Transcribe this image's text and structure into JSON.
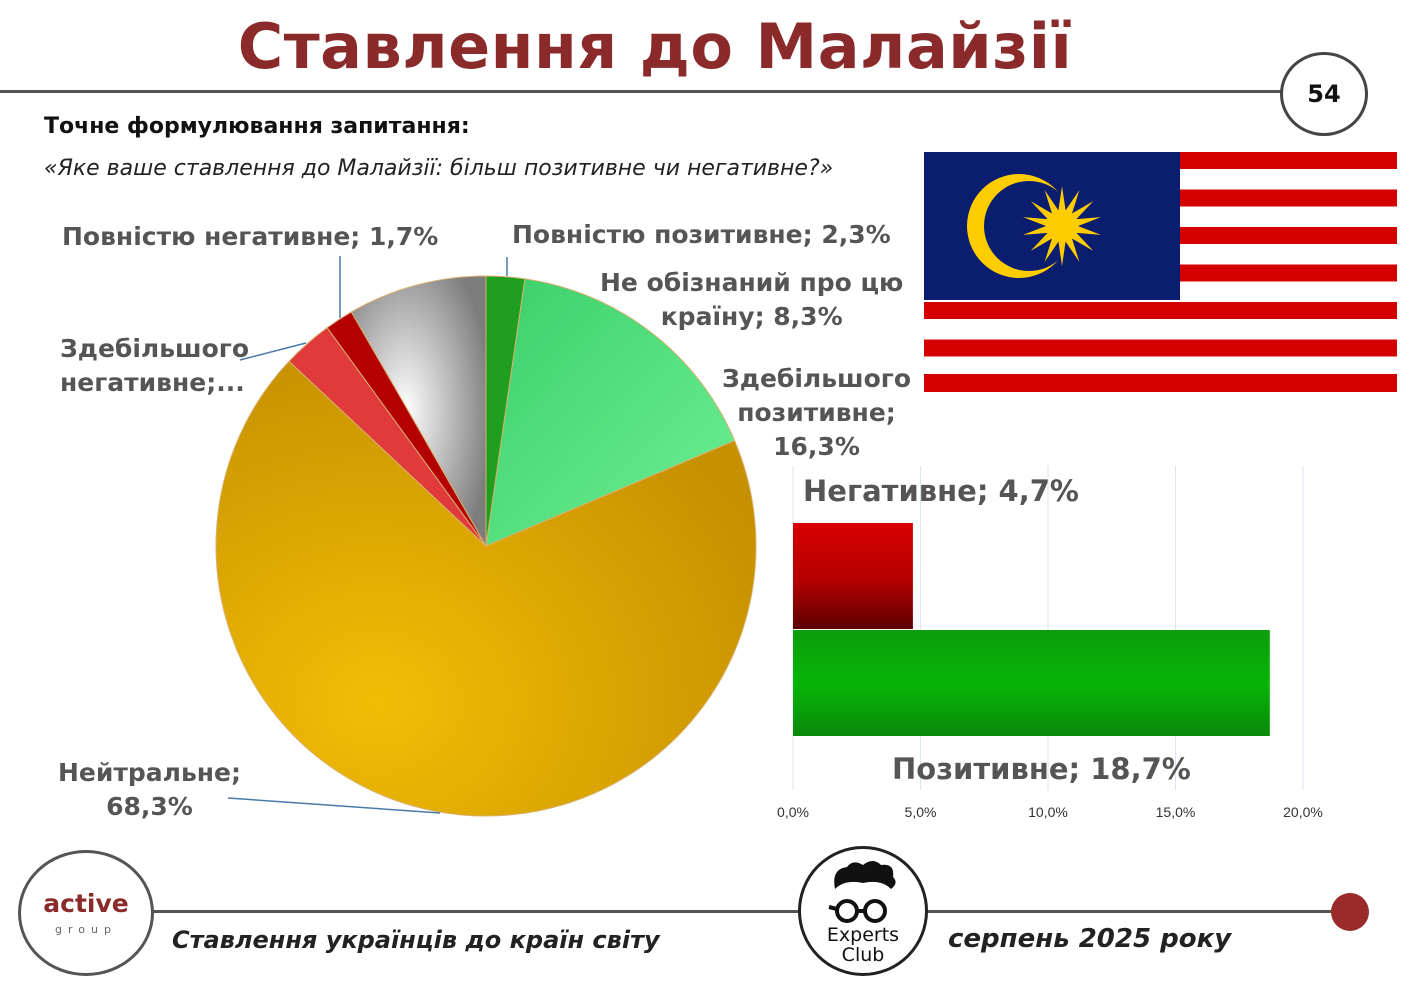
{
  "header": {
    "title": "Ставлення до Малайзії",
    "page_number": "54"
  },
  "question": {
    "label": "Точне формулювання запитання:",
    "text": "«Яке ваше ставлення до Малайзії: більш позитивне чи негативне?»"
  },
  "flag": {
    "name": "malaysia-flag",
    "colors": {
      "red": "#d40000",
      "blue": "#0b1d6e",
      "yellow": "#ffcc00",
      "white": "#ffffff"
    }
  },
  "chart_data": [
    {
      "type": "pie",
      "slices": [
        {
          "label": "Повністю позитивне; 2,3%",
          "value": 2.3,
          "color": "#1f9e1f"
        },
        {
          "label": "Здебільшого позитивне; 16,3%",
          "label_lines": [
            "Здебільшого",
            "позитивне;",
            "16,3%"
          ],
          "value": 16.3,
          "color": "#4fdc78"
        },
        {
          "label": "Нейтральне; 68,3%",
          "label_lines": [
            "Нейтральне;",
            "68,3%"
          ],
          "value": 68.3,
          "color": "#e6a800"
        },
        {
          "label": "Здебільшого негативне;...",
          "label_lines": [
            "Здебільшого",
            "негативне;..."
          ],
          "value": 3.0,
          "color": "#e03a3a"
        },
        {
          "label": "Повністю негативне; 1,7%",
          "value": 1.7,
          "color": "#b40000"
        },
        {
          "label": "Не обізнаний про цю країну; 8,3%",
          "label_lines": [
            "Не обізнаний про цю",
            "країну; 8,3%"
          ],
          "value": 8.3,
          "color": "#9a9a9a"
        }
      ]
    },
    {
      "type": "bar",
      "orientation": "horizontal",
      "categories": [
        "Негативне",
        "Позитивне"
      ],
      "values": [
        4.7,
        18.7
      ],
      "labels": [
        "Негативне; 4,7%",
        "Позитивне; 18,7%"
      ],
      "colors": [
        "#b40000",
        "#0a9a0a"
      ],
      "xlim": [
        0,
        20
      ],
      "xticks": [
        "0,0%",
        "5,0%",
        "10,0%",
        "15,0%",
        "20,0%"
      ],
      "grid": true
    }
  ],
  "footer": {
    "logo_left_main": "active",
    "logo_left_sub": "group",
    "logo_mid_line1": "Experts",
    "logo_mid_line2": "Club",
    "caption_left": "Ставлення українців до країн світу",
    "caption_right": "серпень 2025 року"
  }
}
